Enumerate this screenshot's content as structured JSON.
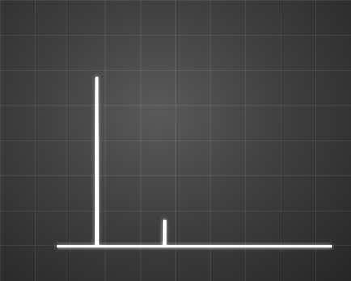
{
  "chart_data": {
    "type": "line",
    "x": [
      1.61,
      2.74,
      2.76,
      2.78,
      4.66,
      4.68,
      4.7,
      9.45
    ],
    "values": [
      0.99,
      0.99,
      5.82,
      0.99,
      0.99,
      1.75,
      0.99,
      0.99
    ],
    "color": "#ffffff",
    "xlim": [
      0,
      10
    ],
    "xticks": [
      0,
      1,
      2,
      3,
      4,
      5,
      6,
      7,
      8,
      9,
      10
    ],
    "ylim": [
      0,
      8
    ],
    "yticks": [
      0,
      1,
      2,
      3,
      4,
      5,
      6,
      7,
      8
    ],
    "grid": true,
    "tick_labels": false
  }
}
